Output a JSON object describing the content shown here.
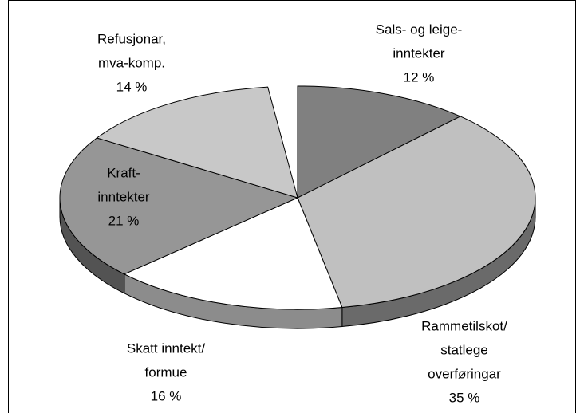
{
  "chart_data": {
    "type": "pie",
    "categories": [
      [
        "Sals- og leige-",
        "inntekter"
      ],
      [
        "Rammetilskot/",
        "statlege",
        "overføringar"
      ],
      [
        "Skatt inntekt/",
        "formue"
      ],
      [
        "Kraft-",
        "inntekter"
      ],
      [
        "Refusjonar,",
        "mva-komp."
      ]
    ],
    "values": [
      12,
      35,
      16,
      21,
      14
    ],
    "value_labels": [
      "12 %",
      "35 %",
      "16 %",
      "21 %",
      "14 %"
    ],
    "colors": [
      "#808080",
      "#c0c0c0",
      "#ffffff",
      "#969696",
      "#c8c8c8"
    ]
  }
}
